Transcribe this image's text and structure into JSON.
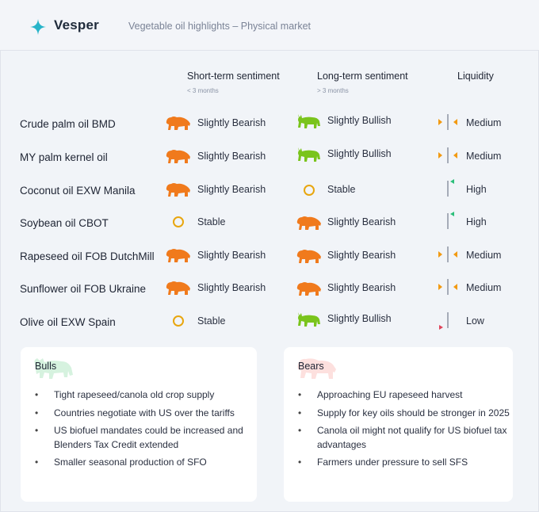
{
  "brand": {
    "name": "Vesper",
    "subtitle": "Vegetable oil highlights – Physical market"
  },
  "colors": {
    "bear": "#f07a1c",
    "bull": "#7ac41c",
    "stable": "#e8a60f",
    "liq_orange": "#f29a12",
    "liq_green": "#2bbf7a",
    "liq_red": "#e0435a",
    "liq_bar": "#a6acb8"
  },
  "columns": {
    "short": {
      "label": "Short-term sentiment",
      "sub": "< 3 months"
    },
    "long": {
      "label": "Long-term sentiment",
      "sub": "> 3 months"
    },
    "liquidity": {
      "label": "Liquidity"
    }
  },
  "rows": [
    {
      "name": "Crude palm oil BMD",
      "short": "Slightly Bearish",
      "short_icon": "bear-icon",
      "long": "Slightly Bullish",
      "long_icon": "bull-icon",
      "liquidity": "Medium"
    },
    {
      "name": "MY palm kernel oil",
      "short": "Slightly Bearish",
      "short_icon": "bear-icon",
      "long": "Slightly Bullish",
      "long_icon": "bull-icon",
      "liquidity": "Medium"
    },
    {
      "name": "Coconut oil EXW Manila",
      "short": "Slightly Bearish",
      "short_icon": "bear-icon",
      "long": "Stable",
      "long_icon": "stable-icon",
      "liquidity": "High"
    },
    {
      "name": "Soybean oil CBOT",
      "short": "Stable",
      "short_icon": "stable-icon",
      "long": "Slightly Bearish",
      "long_icon": "bear-icon",
      "liquidity": "High"
    },
    {
      "name": "Rapeseed oil FOB DutchMill",
      "short": "Slightly Bearish",
      "short_icon": "bear-icon",
      "long": "Slightly Bearish",
      "long_icon": "bear-icon",
      "liquidity": "Medium"
    },
    {
      "name": "Sunflower oil FOB Ukraine",
      "short": "Slightly Bearish",
      "short_icon": "bear-icon",
      "long": "Slightly Bearish",
      "long_icon": "bear-icon",
      "liquidity": "Medium"
    },
    {
      "name": "Olive oil EXW Spain",
      "short": "Stable",
      "short_icon": "stable-icon",
      "long": "Slightly Bullish",
      "long_icon": "bull-icon",
      "liquidity": "Low"
    }
  ],
  "bulls": {
    "title": "Bulls",
    "items": [
      "Tight rapeseed/canola old crop supply",
      "Countries negotiate with US over the tariffs",
      "US biofuel mandates could be increased and Blenders Tax Credit extended",
      "Smaller seasonal production of SFO"
    ]
  },
  "bears": {
    "title": "Bears",
    "items": [
      "Approaching EU rapeseed harvest",
      "Supply for key oils should be stronger in 2025",
      "Canola oil might not qualify for US biofuel tax advantages",
      "Farmers under pressure to sell SFS"
    ]
  }
}
